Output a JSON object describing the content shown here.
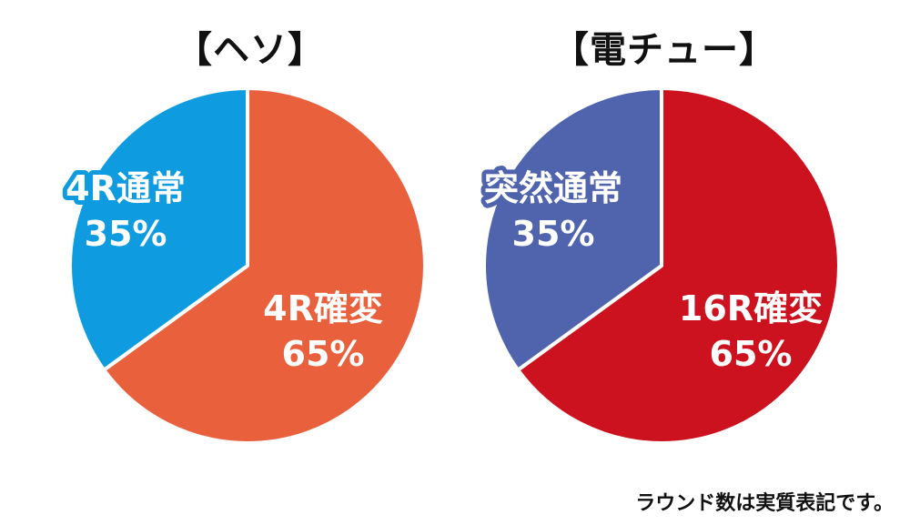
{
  "chart_data": [
    {
      "type": "pie",
      "title": "【ヘソ】",
      "slices": [
        {
          "label": "4R確変",
          "value": 65,
          "value_label": "65%",
          "color": "#E9603C"
        },
        {
          "label": "4R通常",
          "value": 35,
          "value_label": "35%",
          "color": "#0E9BE0"
        }
      ]
    },
    {
      "type": "pie",
      "title": "【電チュー】",
      "slices": [
        {
          "label": "16R確変",
          "value": 65,
          "value_label": "65%",
          "color": "#CD121F"
        },
        {
          "label": "突然通常",
          "value": 35,
          "value_label": "35%",
          "color": "#5064AD"
        }
      ]
    }
  ],
  "footnote": "ラウンド数は実質表記です。"
}
